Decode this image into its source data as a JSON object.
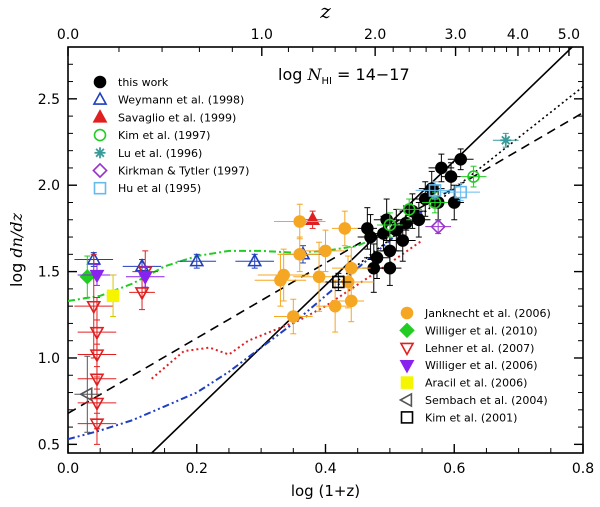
{
  "chart_data": {
    "type": "scatter",
    "title": "log N_HI = 14–17",
    "annotation": {
      "prefix": "log ",
      "symbol": "N",
      "sub": "HI",
      "suffix": " = 14−17"
    },
    "xlabel": "log (1+z)",
    "ylabel": "log dn/dz",
    "top_label": "z",
    "xlim": [
      0.0,
      0.8
    ],
    "ylim": [
      0.45,
      2.8
    ],
    "x_ticks": [
      0.0,
      0.2,
      0.4,
      0.6,
      0.8
    ],
    "x_tick_labels": [
      "0.0",
      "0.2",
      "0.4",
      "0.6",
      "0.8"
    ],
    "y_ticks": [
      0.5,
      1.0,
      1.5,
      2.0,
      2.5
    ],
    "y_tick_labels": [
      "0.5",
      "1.0",
      "1.5",
      "2.0",
      "2.5"
    ],
    "top_ticks": [
      0.0,
      1.0,
      2.0,
      3.0,
      4.0,
      5.0
    ],
    "top_tick_labels": [
      "0.0",
      "1.0",
      "2.0",
      "3.0",
      "4.0",
      "5.0"
    ],
    "lines": [
      {
        "name": "fit solid",
        "style": "solid",
        "color": "#000000",
        "x": [
          0.13,
          0.8
        ],
        "y": [
          0.45,
          2.86
        ]
      },
      {
        "name": "fit dashed",
        "style": "dashed",
        "color": "#000000",
        "x": [
          0.0,
          0.8
        ],
        "y": [
          0.68,
          2.42
        ]
      },
      {
        "name": "fit dotted",
        "style": "dotted",
        "color": "#000000",
        "x": [
          0.42,
          0.8
        ],
        "y": [
          1.45,
          2.57
        ]
      },
      {
        "name": "red dotted",
        "style": "dotted",
        "color": "#e02020",
        "x": [
          0.13,
          0.18,
          0.22,
          0.25,
          0.28,
          0.32,
          0.36,
          0.4,
          0.44,
          0.5,
          0.55
        ],
        "y": [
          0.88,
          1.04,
          1.06,
          1.02,
          1.1,
          1.16,
          1.22,
          1.3,
          1.4,
          1.55,
          1.68
        ]
      },
      {
        "name": "green dash-dot",
        "style": "dashdot",
        "color": "#22cc22",
        "x": [
          0.0,
          0.05,
          0.1,
          0.15,
          0.2,
          0.25,
          0.3,
          0.35,
          0.4,
          0.45,
          0.5,
          0.55
        ],
        "y": [
          1.33,
          1.36,
          1.43,
          1.53,
          1.59,
          1.62,
          1.62,
          1.61,
          1.62,
          1.65,
          1.73,
          1.85
        ]
      },
      {
        "name": "blue dash-dot-dot",
        "style": "dashdotdot",
        "color": "#1f3fbf",
        "x": [
          0.0,
          0.05,
          0.1,
          0.15,
          0.2,
          0.25,
          0.3,
          0.35,
          0.4,
          0.45,
          0.5,
          0.55
        ],
        "y": [
          0.53,
          0.58,
          0.64,
          0.72,
          0.8,
          0.92,
          1.06,
          1.2,
          1.36,
          1.52,
          1.68,
          1.85
        ]
      }
    ],
    "series": [
      {
        "name": "this work",
        "marker": "circle",
        "fill": true,
        "color": "#000000",
        "points": [
          {
            "x": 0.465,
            "y": 1.75,
            "xerr": 0.015,
            "yerr": 0.12
          },
          {
            "x": 0.47,
            "y": 1.7,
            "xerr": 0.02,
            "yerr": 0.13
          },
          {
            "x": 0.475,
            "y": 1.52,
            "xerr": 0.018,
            "yerr": 0.14
          },
          {
            "x": 0.48,
            "y": 1.58,
            "xerr": 0.02,
            "yerr": 0.12
          },
          {
            "x": 0.49,
            "y": 1.72,
            "xerr": 0.018,
            "yerr": 0.1
          },
          {
            "x": 0.495,
            "y": 1.8,
            "xerr": 0.02,
            "yerr": 0.12
          },
          {
            "x": 0.5,
            "y": 1.62,
            "xerr": 0.02,
            "yerr": 0.12
          },
          {
            "x": 0.5,
            "y": 1.52,
            "xerr": 0.018,
            "yerr": 0.1
          },
          {
            "x": 0.51,
            "y": 1.74,
            "xerr": 0.02,
            "yerr": 0.12
          },
          {
            "x": 0.52,
            "y": 1.68,
            "xerr": 0.02,
            "yerr": 0.12
          },
          {
            "x": 0.525,
            "y": 1.78,
            "xerr": 0.018,
            "yerr": 0.1
          },
          {
            "x": 0.535,
            "y": 1.85,
            "xerr": 0.02,
            "yerr": 0.1
          },
          {
            "x": 0.545,
            "y": 1.8,
            "xerr": 0.018,
            "yerr": 0.1
          },
          {
            "x": 0.555,
            "y": 1.92,
            "xerr": 0.02,
            "yerr": 0.1
          },
          {
            "x": 0.565,
            "y": 1.98,
            "xerr": 0.02,
            "yerr": 0.1
          },
          {
            "x": 0.575,
            "y": 1.9,
            "xerr": 0.018,
            "yerr": 0.1
          },
          {
            "x": 0.58,
            "y": 2.1,
            "xerr": 0.02,
            "yerr": 0.08
          },
          {
            "x": 0.595,
            "y": 2.05,
            "xerr": 0.015,
            "yerr": 0.08
          },
          {
            "x": 0.6,
            "y": 1.9,
            "xerr": 0.015,
            "yerr": 0.1
          },
          {
            "x": 0.61,
            "y": 2.15,
            "xerr": 0.02,
            "yerr": 0.06
          }
        ]
      },
      {
        "name": "Weymann et al. (1998)",
        "marker": "triangle-up",
        "fill": false,
        "color": "#1f3fbf",
        "points": [
          {
            "x": 0.04,
            "y": 1.57,
            "xerr": 0.03,
            "yerr": 0.04
          },
          {
            "x": 0.115,
            "y": 1.53,
            "xerr": 0.03,
            "yerr": 0.04
          },
          {
            "x": 0.2,
            "y": 1.56,
            "xerr": 0.03,
            "yerr": 0.04
          },
          {
            "x": 0.29,
            "y": 1.56,
            "xerr": 0.03,
            "yerr": 0.04
          },
          {
            "x": 0.365,
            "y": 1.6,
            "xerr": 0.03,
            "yerr": 0.05
          }
        ]
      },
      {
        "name": "Savaglio et al. (1999)",
        "marker": "triangle-up",
        "fill": true,
        "color": "#e02020",
        "points": [
          {
            "x": 0.38,
            "y": 1.8,
            "xerr": 0.015,
            "yerr": 0.05
          }
        ]
      },
      {
        "name": "Kim et al. (1997)",
        "marker": "circle",
        "fill": false,
        "color": "#22cc22",
        "points": [
          {
            "x": 0.5,
            "y": 1.77,
            "xerr": 0.02,
            "yerr": 0.07
          },
          {
            "x": 0.53,
            "y": 1.86,
            "xerr": 0.02,
            "yerr": 0.06
          },
          {
            "x": 0.57,
            "y": 1.9,
            "xerr": 0.02,
            "yerr": 0.06
          },
          {
            "x": 0.63,
            "y": 2.05,
            "xerr": 0.02,
            "yerr": 0.06
          }
        ]
      },
      {
        "name": "Lu et al. (1996)",
        "marker": "asterisk",
        "fill": false,
        "color": "#3a9a9a",
        "points": [
          {
            "x": 0.68,
            "y": 2.26,
            "xerr": 0.02,
            "yerr": 0.04
          }
        ]
      },
      {
        "name": "Kirkman & Tytler (1997)",
        "marker": "diamond",
        "fill": false,
        "color": "#9933cc",
        "points": [
          {
            "x": 0.575,
            "y": 1.76,
            "xerr": 0.02,
            "yerr": 0.04
          }
        ]
      },
      {
        "name": "Hu et al (1995)",
        "marker": "square",
        "fill": false,
        "color": "#66bbee",
        "points": [
          {
            "x": 0.57,
            "y": 1.97,
            "xerr": 0.03,
            "yerr": 0.05
          },
          {
            "x": 0.61,
            "y": 1.96,
            "xerr": 0.03,
            "yerr": 0.05
          }
        ]
      },
      {
        "name": "Janknecht et al. (2006)",
        "marker": "circle",
        "fill": true,
        "color": "#f5a623",
        "points": [
          {
            "x": 0.33,
            "y": 1.45,
            "xerr": 0.04,
            "yerr": 0.15
          },
          {
            "x": 0.335,
            "y": 1.48,
            "xerr": 0.04,
            "yerr": 0.15
          },
          {
            "x": 0.36,
            "y": 1.79,
            "xerr": 0.04,
            "yerr": 0.1
          },
          {
            "x": 0.36,
            "y": 1.6,
            "xerr": 0.03,
            "yerr": 0.1
          },
          {
            "x": 0.39,
            "y": 1.47,
            "xerr": 0.04,
            "yerr": 0.2
          },
          {
            "x": 0.4,
            "y": 1.62,
            "xerr": 0.03,
            "yerr": 0.12
          },
          {
            "x": 0.415,
            "y": 1.3,
            "xerr": 0.03,
            "yerr": 0.15
          },
          {
            "x": 0.435,
            "y": 1.44,
            "xerr": 0.04,
            "yerr": 0.15
          },
          {
            "x": 0.44,
            "y": 1.52,
            "xerr": 0.03,
            "yerr": 0.12
          },
          {
            "x": 0.44,
            "y": 1.33,
            "xerr": 0.02,
            "yerr": 0.12
          },
          {
            "x": 0.43,
            "y": 1.75,
            "xerr": 0.02,
            "yerr": 0.1
          },
          {
            "x": 0.35,
            "y": 1.24,
            "xerr": 0.03,
            "yerr": 0.1
          }
        ]
      },
      {
        "name": "Williger et al. (2010)",
        "marker": "diamond",
        "fill": true,
        "color": "#22cc22",
        "points": [
          {
            "x": 0.03,
            "y": 1.47,
            "xerr": 0.01,
            "yerr": 0.12
          }
        ]
      },
      {
        "name": "Lehner et al. (2007)",
        "marker": "triangle-down",
        "fill": false,
        "color": "#e02020",
        "points": [
          {
            "x": 0.04,
            "y": 1.3,
            "xerr": 0.03,
            "yerr": 0.3
          },
          {
            "x": 0.045,
            "y": 1.15,
            "xerr": 0.03,
            "yerr": 0.2
          },
          {
            "x": 0.045,
            "y": 1.02,
            "xerr": 0.03,
            "yerr": 0.2
          },
          {
            "x": 0.045,
            "y": 0.88,
            "xerr": 0.03,
            "yerr": 0.2
          },
          {
            "x": 0.045,
            "y": 0.74,
            "xerr": 0.03,
            "yerr": 0.15
          },
          {
            "x": 0.045,
            "y": 0.62,
            "xerr": 0.03,
            "yerr": 0.12
          },
          {
            "x": 0.12,
            "y": 1.5,
            "xerr": 0.02,
            "yerr": 0.12
          },
          {
            "x": 0.115,
            "y": 1.38,
            "xerr": 0.02,
            "yerr": 0.1
          }
        ]
      },
      {
        "name": "Williger et al. (2006)",
        "marker": "triangle-down",
        "fill": true,
        "color": "#8822ee",
        "points": [
          {
            "x": 0.045,
            "y": 1.48,
            "xerr": 0.03,
            "yerr": 0.06
          },
          {
            "x": 0.12,
            "y": 1.47,
            "xerr": 0.03,
            "yerr": 0.06
          }
        ]
      },
      {
        "name": "Aracil et al. (2006)",
        "marker": "square",
        "fill": true,
        "color": "#f5f500",
        "points": [
          {
            "x": 0.07,
            "y": 1.36,
            "xerr": 0.01,
            "yerr": 0.12
          }
        ]
      },
      {
        "name": "Sembach et al. (2004)",
        "marker": "triangle-left",
        "fill": false,
        "color": "#555555",
        "points": [
          {
            "x": 0.03,
            "y": 0.79,
            "xerr": 0.02,
            "yerr": 0.22
          }
        ]
      },
      {
        "name": "Kim et al. (2001)",
        "marker": "square",
        "fill": false,
        "color": "#000000",
        "points": [
          {
            "x": 0.42,
            "y": 1.44,
            "xerr": 0.02,
            "yerr": 0.05
          }
        ]
      }
    ],
    "legend_top": [
      "this work",
      "Weymann et al. (1998)",
      "Savaglio et al. (1999)",
      "Kim et al. (1997)",
      "Lu et al. (1996)",
      "Kirkman & Tytler (1997)",
      "Hu et al (1995)"
    ],
    "legend_bottom": [
      "Janknecht et al. (2006)",
      "Williger et al. (2010)",
      "Lehner et al. (2007)",
      "Williger et al. (2006)",
      "Aracil et al. (2006)",
      "Sembach et al. (2004)",
      "Kim et al. (2001)"
    ],
    "legend_top_position": "top-left",
    "legend_bottom_position": "bottom-right"
  }
}
